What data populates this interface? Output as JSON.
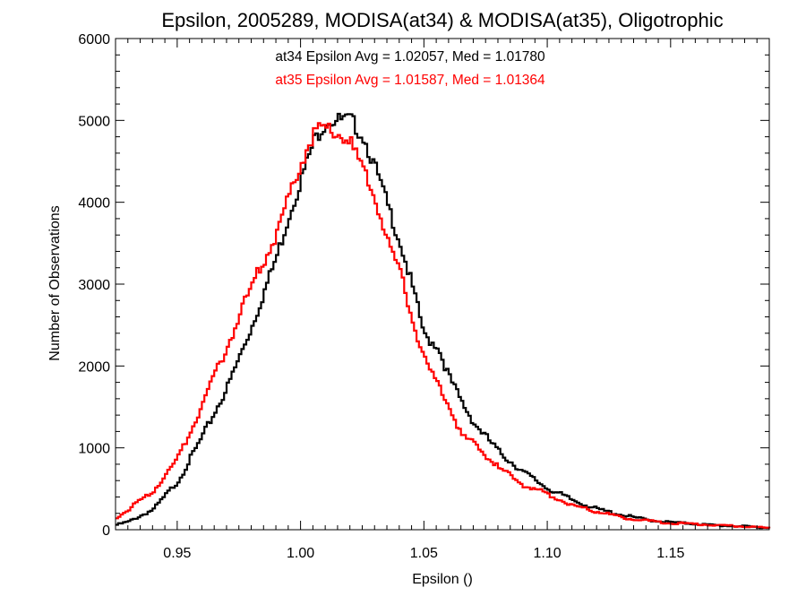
{
  "chart_data": {
    "type": "line",
    "title": "Epsilon, 2005289, MODISA(at34) & MODISA(at35), Oligotrophic",
    "xlabel": "Epsilon ()",
    "ylabel": "Number of Observations",
    "xlim": [
      0.925,
      1.19
    ],
    "ylim": [
      0,
      6000
    ],
    "x_ticks": [
      "0.95",
      "1.00",
      "1.05",
      "1.10",
      "1.15"
    ],
    "y_ticks": [
      "0",
      "1000",
      "2000",
      "3000",
      "4000",
      "5000",
      "6000"
    ],
    "grid": false,
    "legend_position": "top-center",
    "annotations": [
      {
        "text": "at34 Epsilon Avg = 1.02057, Med = 1.01780",
        "color": "#000000"
      },
      {
        "text": "at35 Epsilon Avg = 1.01587, Med = 1.01364",
        "color": "#ff0000"
      }
    ],
    "series": [
      {
        "color": "#000000",
        "x": [
          0.925,
          0.93,
          0.94,
          0.95,
          0.96,
          0.97,
          0.98,
          0.99,
          0.995,
          1.0,
          1.005,
          1.01,
          1.015,
          1.02,
          1.025,
          1.03,
          1.035,
          1.04,
          1.045,
          1.05,
          1.055,
          1.06,
          1.065,
          1.07,
          1.08,
          1.09,
          1.1,
          1.11,
          1.12,
          1.13,
          1.14,
          1.15,
          1.16,
          1.17,
          1.18,
          1.19
        ],
        "values": [
          60,
          100,
          250,
          600,
          1150,
          1750,
          2500,
          3350,
          3850,
          4300,
          4750,
          5000,
          5000,
          5000,
          4800,
          4400,
          3950,
          3500,
          2950,
          2350,
          2250,
          1850,
          1550,
          1300,
          950,
          700,
          500,
          360,
          250,
          180,
          120,
          90,
          70,
          50,
          40,
          20
        ]
      },
      {
        "color": "#ff0000",
        "x": [
          0.925,
          0.93,
          0.94,
          0.95,
          0.96,
          0.97,
          0.98,
          0.99,
          0.995,
          1.0,
          1.005,
          1.01,
          1.015,
          1.02,
          1.025,
          1.03,
          1.035,
          1.04,
          1.045,
          1.05,
          1.055,
          1.06,
          1.065,
          1.07,
          1.08,
          1.09,
          1.1,
          1.11,
          1.12,
          1.13,
          1.14,
          1.15,
          1.16,
          1.17,
          1.18,
          1.19
        ],
        "values": [
          150,
          250,
          480,
          880,
          1550,
          2250,
          3000,
          3600,
          4100,
          4500,
          4850,
          4900,
          4850,
          4700,
          4400,
          4050,
          3500,
          3150,
          2550,
          2050,
          1800,
          1500,
          1150,
          1050,
          750,
          550,
          430,
          300,
          220,
          150,
          110,
          80,
          70,
          50,
          40,
          20
        ]
      }
    ]
  }
}
